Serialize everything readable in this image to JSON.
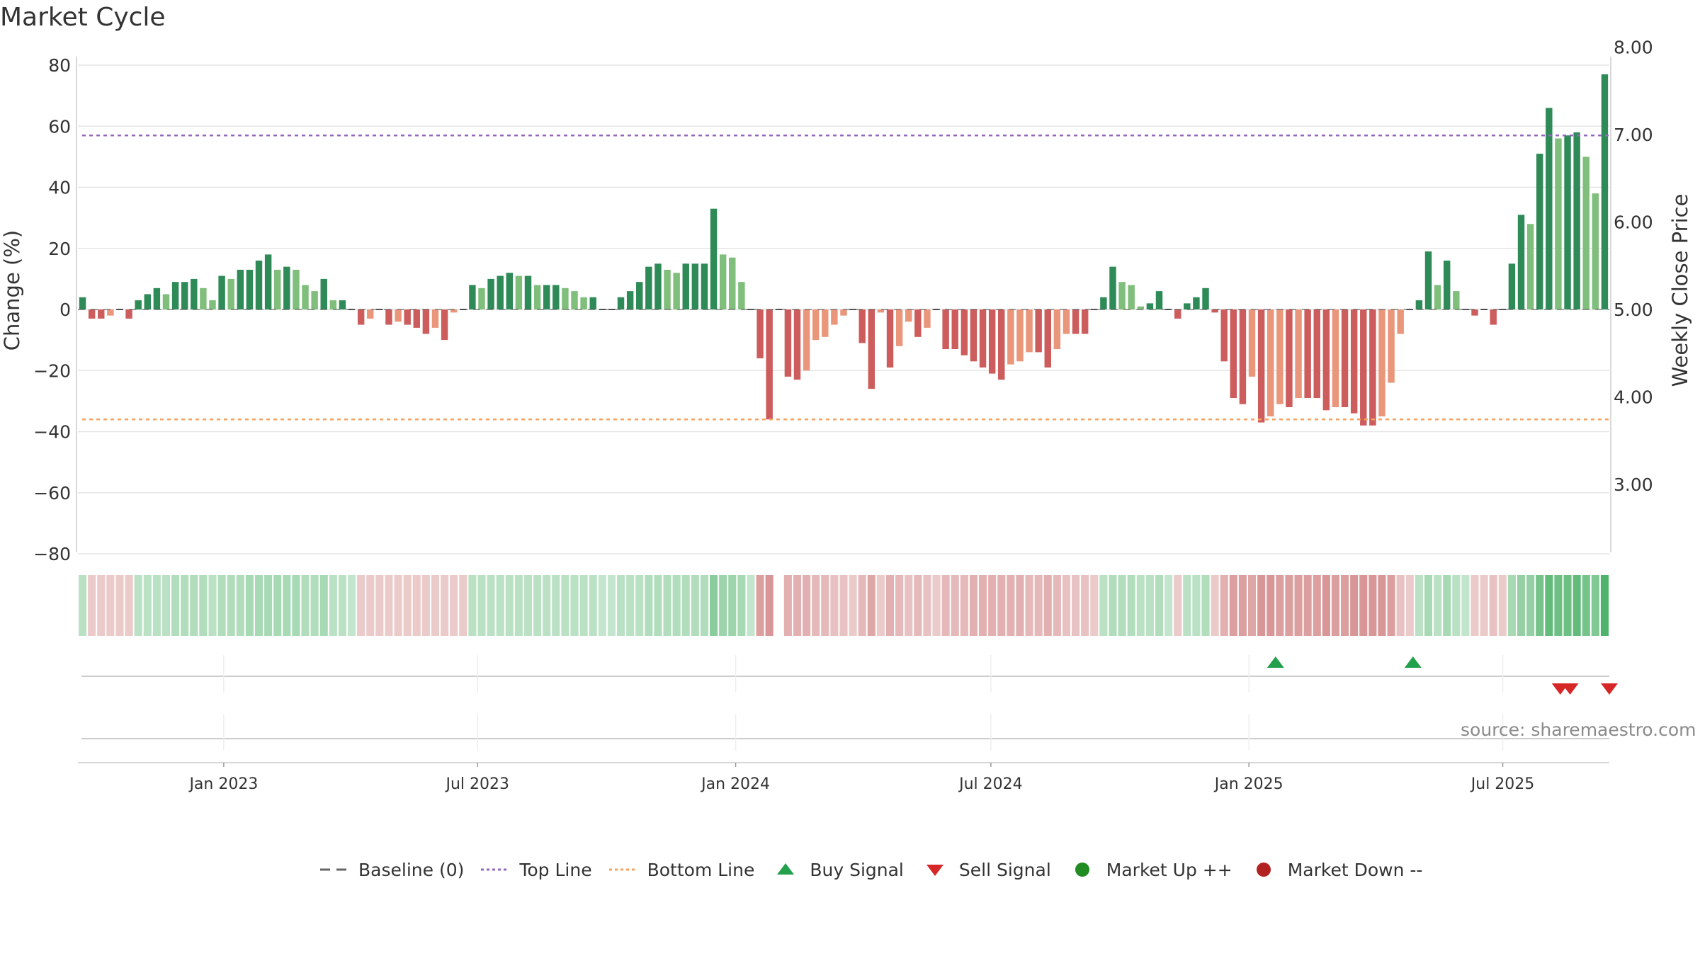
{
  "title": "Market Cycle",
  "source": "source: sharemaestro.com",
  "chart_data": {
    "type": "bar",
    "title": "Market Cycle",
    "ylabel": "Change (%)",
    "ylabel_right": "Weekly Close Price",
    "ylim": [
      -80,
      80
    ],
    "y_ticks": [
      "80",
      "60",
      "40",
      "20",
      "0",
      "−20",
      "−40",
      "−60",
      "−80"
    ],
    "y2lim": [
      2.5,
      8.0
    ],
    "y2_ticks": [
      "8.00",
      "7.00",
      "6.00",
      "5.00",
      "4.00",
      "3.00"
    ],
    "x_ticks": [
      "Jan 2023",
      "Jul 2023",
      "Jan 2024",
      "Jul 2024",
      "Jan 2025",
      "Jul 2025"
    ],
    "x_start": "2022-09-19",
    "x_end": "2025-09-15",
    "top_line": 57,
    "bottom_line": -36,
    "colors": {
      "up_strong": "#2e8b57",
      "up_light": "#7fbf7b",
      "down_strong": "#cd5c5c",
      "down_light": "#e9967a",
      "top_line": "#9467bd",
      "bottom_line": "#f4a261",
      "buy": "#22a04b",
      "sell": "#d62728",
      "market_up": "#228b22",
      "market_down": "#b22222",
      "baseline": "#666666"
    },
    "weekly_change": [
      4,
      -3,
      -3,
      -2,
      0,
      -3,
      3,
      5,
      7,
      5,
      9,
      9,
      10,
      7,
      3,
      11,
      10,
      13,
      13,
      16,
      18,
      13,
      14,
      13,
      8,
      6,
      10,
      3,
      3,
      0,
      -5,
      -3,
      0,
      -5,
      -4,
      -5,
      -6,
      -8,
      -6,
      -10,
      -1,
      0,
      8,
      7,
      10,
      11,
      12,
      11,
      11,
      8,
      8,
      8,
      7,
      6,
      4,
      4,
      0,
      0,
      4,
      6,
      9,
      14,
      15,
      13,
      12,
      15,
      15,
      15,
      33,
      18,
      17,
      9,
      0,
      -16,
      -36,
      0,
      -22,
      -23,
      -20,
      -10,
      -9,
      -5,
      -2,
      0,
      -11,
      -26,
      -1,
      -19,
      -12,
      -4,
      -9,
      -6,
      0,
      -13,
      -13,
      -15,
      -17,
      -19,
      -21,
      -23,
      -18,
      -17,
      -14,
      -14,
      -19,
      -13,
      -8,
      -8,
      -8,
      0,
      4,
      14,
      9,
      8,
      1,
      2,
      6,
      0,
      -3,
      2,
      4,
      7,
      -1,
      -17,
      -29,
      -31,
      -22,
      -37,
      -35,
      -31,
      -32,
      -29,
      -29,
      -29,
      -33,
      -32,
      -32,
      -34,
      -38,
      -38,
      -35,
      -24,
      -8,
      0,
      3,
      19,
      8,
      16,
      6,
      0,
      -2,
      0,
      -5,
      0,
      15,
      31,
      28,
      51,
      66,
      56,
      57,
      58,
      50,
      38,
      77
    ],
    "cycle_intensity": [
      0.35,
      0.3,
      0.3,
      0.3,
      0.3,
      0.3,
      0.35,
      0.35,
      0.35,
      0.35,
      0.4,
      0.4,
      0.4,
      0.4,
      0.35,
      0.4,
      0.4,
      0.4,
      0.45,
      0.45,
      0.45,
      0.45,
      0.45,
      0.45,
      0.4,
      0.4,
      0.45,
      0.35,
      0.35,
      0.3,
      0.3,
      0.3,
      0.3,
      0.3,
      0.3,
      0.3,
      0.3,
      0.3,
      0.3,
      0.3,
      0.3,
      0.3,
      0.35,
      0.35,
      0.35,
      0.35,
      0.35,
      0.35,
      0.35,
      0.35,
      0.35,
      0.35,
      0.35,
      0.35,
      0.35,
      0.35,
      0.3,
      0.3,
      0.35,
      0.35,
      0.35,
      0.4,
      0.4,
      0.4,
      0.4,
      0.4,
      0.4,
      0.4,
      0.6,
      0.5,
      0.5,
      0.45,
      0.3,
      0.55,
      0.6,
      0,
      0.45,
      0.45,
      0.45,
      0.4,
      0.4,
      0.35,
      0.35,
      0.3,
      0.4,
      0.5,
      0.3,
      0.45,
      0.4,
      0.35,
      0.4,
      0.35,
      0.3,
      0.4,
      0.4,
      0.4,
      0.45,
      0.45,
      0.45,
      0.45,
      0.45,
      0.45,
      0.4,
      0.4,
      0.45,
      0.4,
      0.35,
      0.35,
      0.35,
      0.3,
      0.35,
      0.4,
      0.4,
      0.4,
      0.35,
      0.35,
      0.4,
      0.3,
      0.3,
      0.35,
      0.35,
      0.4,
      0.3,
      0.45,
      0.55,
      0.55,
      0.5,
      0.6,
      0.6,
      0.55,
      0.55,
      0.55,
      0.55,
      0.55,
      0.6,
      0.55,
      0.55,
      0.6,
      0.6,
      0.6,
      0.6,
      0.55,
      0.35,
      0.3,
      0.35,
      0.45,
      0.35,
      0.45,
      0.35,
      0.3,
      0.3,
      0.3,
      0.35,
      0.3,
      0.45,
      0.55,
      0.55,
      0.7,
      0.8,
      0.75,
      0.75,
      0.8,
      0.7,
      0.65,
      0.9
    ],
    "signals": {
      "buy": [
        "2025-01-20",
        "2025-04-28"
      ],
      "sell": [
        "2025-08-11",
        "2025-08-18",
        "2025-09-15"
      ]
    },
    "legend": [
      {
        "label": "Baseline (0)",
        "marker": "dashed-line",
        "color": "#666666"
      },
      {
        "label": "Top Line",
        "marker": "dotted-line",
        "color": "#9467bd"
      },
      {
        "label": "Bottom Line",
        "marker": "dotted-line",
        "color": "#f4a261"
      },
      {
        "label": "Buy Signal",
        "marker": "triangle-up",
        "color": "#22a04b"
      },
      {
        "label": "Sell Signal",
        "marker": "triangle-down",
        "color": "#d62728"
      },
      {
        "label": "Market Up ++",
        "marker": "circle",
        "color": "#228b22"
      },
      {
        "label": "Market Down --",
        "marker": "circle",
        "color": "#b22222"
      }
    ],
    "legend_position": "bottom",
    "grid": true
  }
}
